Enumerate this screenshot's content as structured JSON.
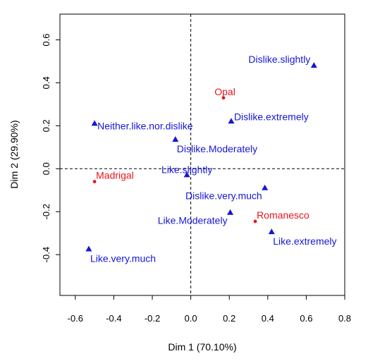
{
  "chart_data": {
    "type": "scatter",
    "title": "",
    "xlabel": "Dim 1 (70.10%)",
    "ylabel": "Dim 2 (29.90%)",
    "xlim": [
      -0.68,
      0.8
    ],
    "ylim": [
      -0.59,
      0.72
    ],
    "xticks": [
      -0.6,
      -0.4,
      -0.2,
      0.0,
      0.2,
      0.4,
      0.6,
      0.8
    ],
    "xtick_labels": [
      "-0.6",
      "-0.4",
      "-0.2",
      "0.0",
      "0.2",
      "0.4",
      "0.6",
      "0.8"
    ],
    "yticks": [
      -0.4,
      -0.2,
      0.0,
      0.2,
      0.4,
      0.6
    ],
    "ytick_labels": [
      "-0.4",
      "-0.2",
      "0.0",
      "0.2",
      "0.4",
      "0.6"
    ],
    "reference_lines": {
      "x": 0,
      "y": 0,
      "style": "dashed"
    },
    "grid": false,
    "series": [
      {
        "name": "",
        "marker": "dot",
        "color": "#e8151b",
        "points": [
          {
            "label": "Opal",
            "x": 0.17,
            "y": 0.33,
            "label_pos": "top-left"
          },
          {
            "label": "Madrigal",
            "x": -0.5,
            "y": -0.06,
            "label_pos": "top-right"
          },
          {
            "label": "Romanesco",
            "x": 0.335,
            "y": -0.245,
            "label_pos": "top-right"
          }
        ]
      },
      {
        "name": "",
        "marker": "triangle",
        "color": "#1616d6",
        "points": [
          {
            "label": "Dislike.slightly",
            "x": 0.64,
            "y": 0.48,
            "label_pos": "left"
          },
          {
            "label": "Dislike.extremely",
            "x": 0.21,
            "y": 0.22,
            "label_pos": "right-up"
          },
          {
            "label": "Neither.like.nor.dislike",
            "x": -0.5,
            "y": 0.21,
            "label_pos": "right-down"
          },
          {
            "label": "Dislike.Moderately",
            "x": -0.08,
            "y": 0.135,
            "label_pos": "below-right"
          },
          {
            "label": "Like.slightly",
            "x": -0.02,
            "y": -0.03,
            "label_pos": "above-center"
          },
          {
            "label": "Dislike.very.much",
            "x": 0.385,
            "y": -0.09,
            "label_pos": "below-left"
          },
          {
            "label": "Like.Moderately",
            "x": 0.205,
            "y": -0.205,
            "label_pos": "below-left"
          },
          {
            "label": "Like.extremely",
            "x": 0.42,
            "y": -0.295,
            "label_pos": "below-right"
          },
          {
            "label": "Like.very.much",
            "x": -0.53,
            "y": -0.375,
            "label_pos": "below-right"
          }
        ]
      }
    ]
  }
}
